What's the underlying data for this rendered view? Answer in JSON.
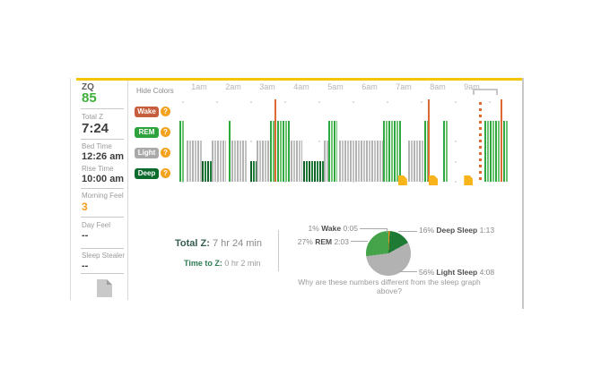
{
  "colors": {
    "accent_bar": "#f2c500",
    "zq_green": "#3fae3a",
    "morning_feel_orange": "#f49a1c",
    "help_orange": "#f4a21d"
  },
  "sidebar": {
    "zq_label": "ZQ",
    "zq_value": "85",
    "items": [
      {
        "label": "Total Z",
        "value": "7:24"
      },
      {
        "label": "Bed Time",
        "value": "12:26 am"
      },
      {
        "label": "Rise Time",
        "value": "10:00 am"
      },
      {
        "label": "Morning Feel",
        "value": "3"
      },
      {
        "label": "Day Feel",
        "value": "--"
      },
      {
        "label": "Sleep Stealer",
        "value": "--"
      }
    ],
    "doc_icon": "note-document-icon"
  },
  "legend": {
    "hide_colors_label": "Hide Colors",
    "help_icon": "help-question-icon",
    "buttons": [
      {
        "label": "Wake",
        "color": "#c65d3d"
      },
      {
        "label": "REM",
        "color": "#2ea23c"
      },
      {
        "label": "Light",
        "color": "#a9a9a9"
      },
      {
        "label": "Deep",
        "color": "#0e6b2e"
      }
    ]
  },
  "summary": {
    "total_z_label": "Total Z:",
    "total_z_value": " 7 hr 24 min",
    "time_to_z_label": "Time to Z:",
    "time_to_z_value": " 0 hr 2 min",
    "footnote": "Why are these numbers different from the sleep graph above?"
  },
  "chart_data": [
    {
      "type": "bar",
      "title": "Sleep graph (5-minute sleep stages)",
      "x_axis_hours": [
        "1am",
        "2am",
        "3am",
        "4am",
        "5am",
        "6am",
        "7am",
        "8am",
        "9am"
      ],
      "bed_time": "12:26 am",
      "rise_time": "10:00 am",
      "stage_levels": {
        "wake": 4,
        "rem": 3,
        "light": 2,
        "deep": 1
      },
      "stage_colors": {
        "wake": {
          "main": "#dd6a33",
          "alt": "#e98a52"
        },
        "rem": {
          "main": "#2fa83f",
          "alt": "#6cc46f"
        },
        "light": {
          "main": "#b3b3b3",
          "alt": "#c2c2c2"
        },
        "deep": {
          "main": "#135f2a",
          "alt": "#1e7d38"
        }
      },
      "segments_min_after_midnight": [
        {
          "stage": "rem",
          "start": 25,
          "end": 35
        },
        {
          "stage": "light",
          "start": 38,
          "end": 65
        },
        {
          "stage": "deep",
          "start": 65,
          "end": 82
        },
        {
          "stage": "light",
          "start": 82,
          "end": 107
        },
        {
          "stage": "rem",
          "start": 112,
          "end": 117
        },
        {
          "stage": "light",
          "start": 117,
          "end": 145
        },
        {
          "stage": "deep",
          "start": 150,
          "end": 161
        },
        {
          "stage": "light",
          "start": 161,
          "end": 185
        },
        {
          "stage": "rem",
          "start": 185,
          "end": 192
        },
        {
          "stage": "wake",
          "start": 192,
          "end": 197
        },
        {
          "stage": "rem",
          "start": 197,
          "end": 221
        },
        {
          "stage": "light",
          "start": 221,
          "end": 242
        },
        {
          "stage": "deep",
          "start": 243,
          "end": 280
        },
        {
          "stage": "light",
          "start": 280,
          "end": 287
        },
        {
          "stage": "rem",
          "start": 287,
          "end": 303
        },
        {
          "stage": "light",
          "start": 306,
          "end": 384
        },
        {
          "stage": "rem",
          "start": 384,
          "end": 415
        },
        {
          "stage": "light",
          "start": 428,
          "end": 456
        },
        {
          "stage": "rem",
          "start": 456,
          "end": 462
        },
        {
          "stage": "wake",
          "start": 462,
          "end": 468
        },
        {
          "stage": "rem",
          "start": 490,
          "end": 499
        },
        {
          "stage": "rem",
          "start": 562,
          "end": 590
        },
        {
          "stage": "wake",
          "start": 590,
          "end": 595
        },
        {
          "stage": "rem",
          "start": 595,
          "end": 604
        }
      ],
      "note_markers_min": [
        415,
        469,
        531
      ],
      "selection_bracket_min": {
        "start": 542,
        "end": 580
      },
      "current_time_marker_min": 554
    },
    {
      "type": "pie",
      "title": "Sleep stage distribution",
      "slices": [
        {
          "name": "Wake",
          "pct": 1,
          "pct_label": "1%",
          "time": "0:05",
          "color": "#ee8c1e"
        },
        {
          "name": "Deep Sleep",
          "pct": 16,
          "pct_label": "16%",
          "time": "1:13",
          "color": "#1e7b33"
        },
        {
          "name": "Light Sleep",
          "pct": 56,
          "pct_label": "56%",
          "time": "4:08",
          "color": "#b2b2b2"
        },
        {
          "name": "REM",
          "pct": 27,
          "pct_label": "27%",
          "time": "2:03",
          "color": "#45a34a"
        }
      ],
      "order_clockwise_from_top": [
        "Wake",
        "Deep Sleep",
        "Light Sleep",
        "REM"
      ]
    }
  ]
}
